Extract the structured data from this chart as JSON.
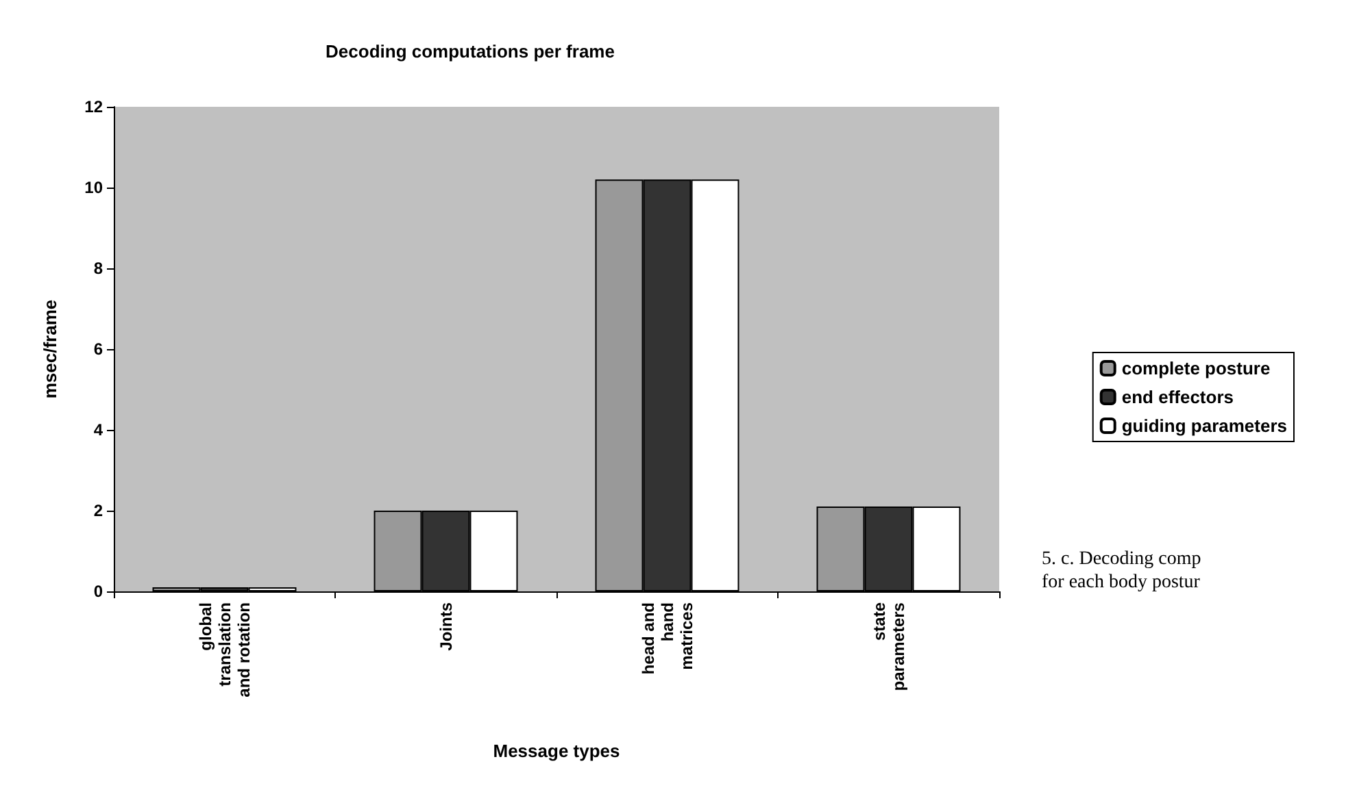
{
  "chart_data": {
    "type": "bar",
    "title": "Decoding computations per frame",
    "xlabel": "Message types",
    "ylabel": "msec/frame",
    "categories": [
      "global\ntranslation\nand rotation",
      "Joints",
      "head and\nhand\nmatrices",
      "state\nparameters"
    ],
    "series": [
      {
        "name": "complete posture",
        "color": "#999999",
        "values": [
          0.1,
          2.0,
          10.2,
          2.1
        ]
      },
      {
        "name": "end effectors",
        "color": "#333333",
        "values": [
          0.1,
          2.0,
          10.2,
          2.1
        ]
      },
      {
        "name": "guiding parameters",
        "color": "#ffffff",
        "values": [
          0.1,
          2.0,
          10.2,
          2.1
        ]
      }
    ],
    "ylim": [
      0,
      12
    ],
    "yticks": [
      0,
      2,
      4,
      6,
      8,
      10,
      12
    ],
    "grid": false,
    "legend": "right",
    "annotations": [
      "5. c. Decoding comp",
      "for each body postur"
    ]
  }
}
